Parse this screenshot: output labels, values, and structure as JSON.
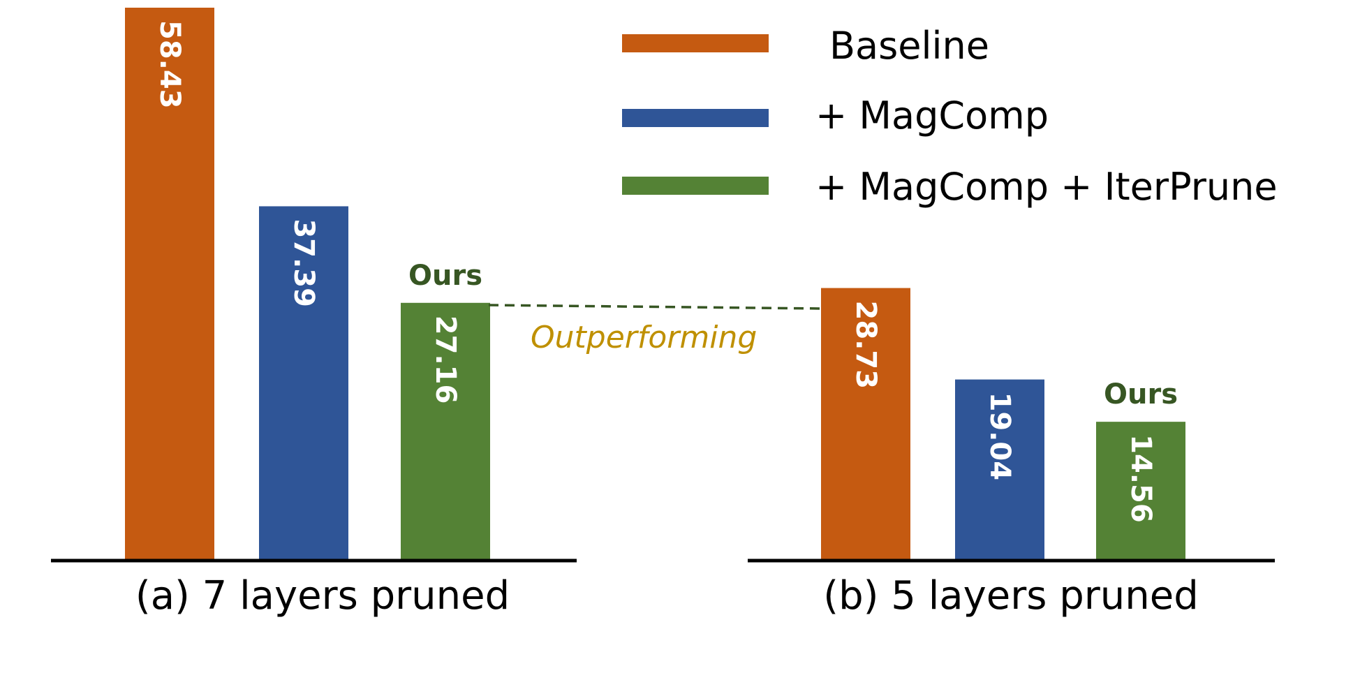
{
  "chart_data": [
    {
      "type": "bar",
      "caption": "(a) 7 layers pruned",
      "categories": [
        "Baseline",
        "+ MagComp",
        "+ MagComp + IterPrune"
      ],
      "values": [
        58.43,
        37.39,
        27.16
      ],
      "value_labels": [
        "58.43",
        "37.39",
        "27.16"
      ],
      "highlight_label": "Ours"
    },
    {
      "type": "bar",
      "caption": "(b) 5 layers pruned",
      "categories": [
        "Baseline",
        "+ MagComp",
        "+ MagComp + IterPrune"
      ],
      "values": [
        28.73,
        19.04,
        14.56
      ],
      "value_labels": [
        "28.73",
        "19.04",
        "14.56"
      ],
      "highlight_label": "Ours"
    }
  ],
  "legend": {
    "placement": "top-right",
    "entries": [
      {
        "label": "Baseline",
        "color": "#c55a11"
      },
      {
        "label": "+ MagComp",
        "color": "#2f5597"
      },
      {
        "label": "+ MagComp + IterPrune",
        "color": "#548235"
      }
    ]
  },
  "annotation": {
    "text": "Outperforming",
    "color": "#bf9000",
    "line_color": "#375623"
  },
  "colors": {
    "ours_label": "#375623",
    "axis": "#000000"
  }
}
